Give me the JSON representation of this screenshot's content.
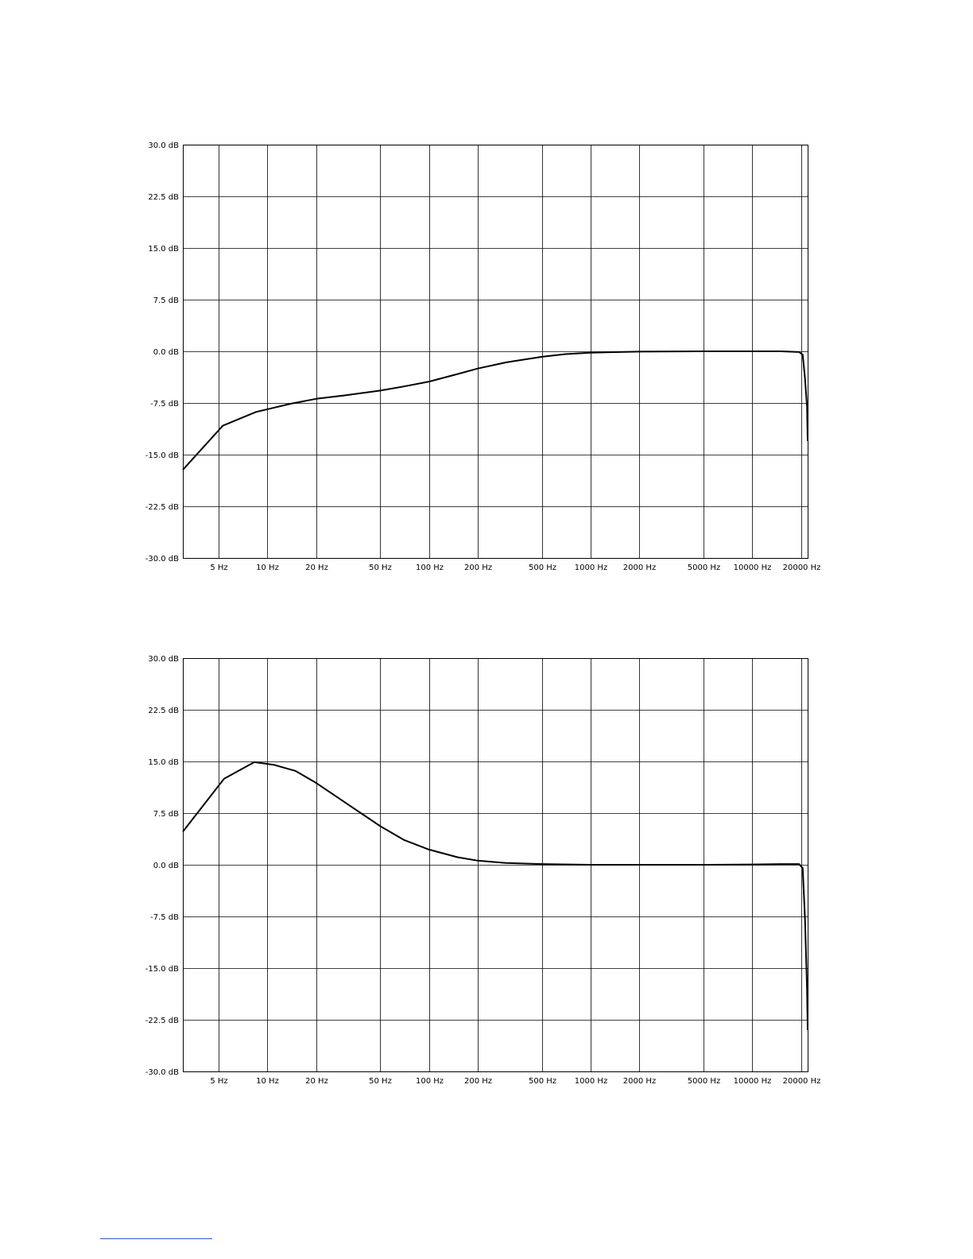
{
  "colors": {
    "curve": "#000000",
    "grid": "#000000",
    "footnote_rule": "#3355cc"
  },
  "chart_data": [
    {
      "type": "line",
      "title": "",
      "xlabel": "",
      "ylabel": "",
      "x_scale": "log",
      "xlim": [
        3,
        22000
      ],
      "ylim": [
        -30,
        30
      ],
      "grid": true,
      "x_tick_values": [
        5,
        10,
        20,
        50,
        100,
        200,
        500,
        1000,
        2000,
        5000,
        10000,
        20000
      ],
      "x_tick_labels": [
        "5 Hz",
        "10 Hz",
        "20 Hz",
        "50 Hz",
        "100 Hz",
        "200 Hz",
        "500 Hz",
        "1000 Hz",
        "2000 Hz",
        "5000 Hz",
        "10000 Hz",
        "20000 Hz"
      ],
      "y_tick_values": [
        30,
        22.5,
        15,
        7.5,
        0,
        -7.5,
        -15,
        -22.5,
        -30
      ],
      "y_tick_labels": [
        "30.0 dB",
        "22.5 dB",
        "15.0 dB",
        "7.5 dB",
        "0.0 dB",
        "-7.5 dB",
        "-15.0 dB",
        "-22.5 dB",
        "-30.0 dB"
      ],
      "series": [
        {
          "x": [
            3,
            5.3,
            8.5,
            14,
            20,
            30,
            50,
            70,
            100,
            150,
            200,
            300,
            500,
            700,
            1000,
            2000,
            5000,
            10000,
            15000,
            19500,
            20500,
            21200,
            21800,
            22000
          ],
          "y": [
            -17.2,
            -10.8,
            -8.8,
            -7.6,
            -6.9,
            -6.4,
            -5.7,
            -5.1,
            -4.4,
            -3.3,
            -2.5,
            -1.6,
            -0.8,
            -0.4,
            -0.2,
            -0.05,
            0.0,
            0.0,
            0.0,
            -0.1,
            -0.5,
            -4.0,
            -8.0,
            -13.0
          ]
        }
      ]
    },
    {
      "type": "line",
      "title": "",
      "xlabel": "",
      "ylabel": "",
      "x_scale": "log",
      "xlim": [
        3,
        22000
      ],
      "ylim": [
        -30,
        30
      ],
      "grid": true,
      "x_tick_values": [
        5,
        10,
        20,
        50,
        100,
        200,
        500,
        1000,
        2000,
        5000,
        10000,
        20000
      ],
      "x_tick_labels": [
        "5 Hz",
        "10 Hz",
        "20 Hz",
        "50 Hz",
        "100 Hz",
        "200 Hz",
        "500 Hz",
        "1000 Hz",
        "2000 Hz",
        "5000 Hz",
        "10000 Hz",
        "20000 Hz"
      ],
      "y_tick_values": [
        30,
        22.5,
        15,
        7.5,
        0,
        -7.5,
        -15,
        -22.5,
        -30
      ],
      "y_tick_labels": [
        "30.0 dB",
        "22.5 dB",
        "15.0 dB",
        "7.5 dB",
        "0.0 dB",
        "-7.5 dB",
        "-15.0 dB",
        "-22.5 dB",
        "-30.0 dB"
      ],
      "series": [
        {
          "x": [
            3,
            5.4,
            8.3,
            11,
            15,
            20,
            30,
            50,
            70,
            100,
            150,
            200,
            300,
            500,
            1000,
            2000,
            5000,
            10000,
            15000,
            19500,
            20500,
            21200,
            21800,
            22000
          ],
          "y": [
            4.8,
            12.5,
            14.9,
            14.5,
            13.6,
            11.9,
            9.1,
            5.6,
            3.6,
            2.2,
            1.1,
            0.6,
            0.25,
            0.1,
            0.0,
            0.0,
            0.0,
            0.05,
            0.1,
            0.1,
            -0.5,
            -8.0,
            -18.0,
            -24.0
          ]
        }
      ]
    }
  ]
}
